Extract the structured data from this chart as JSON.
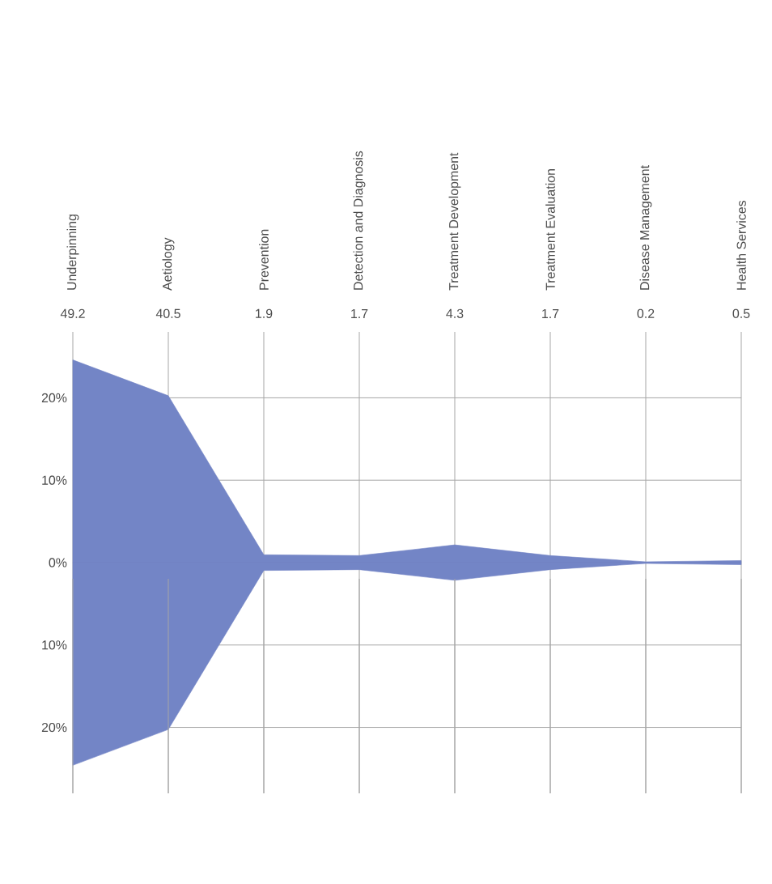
{
  "chart_data": {
    "type": "area",
    "categories": [
      "Underpinning",
      "Aetiology",
      "Prevention",
      "Detection and Diagnosis",
      "Treatment Development",
      "Treatment Evaluation",
      "Disease Management",
      "Health Services"
    ],
    "value_labels": [
      "49.2",
      "40.5",
      "1.9",
      "1.7",
      "4.3",
      "1.7",
      "0.2",
      "0.5"
    ],
    "series": [
      {
        "color": "#7385c6",
        "values": [
          24.6,
          20.25,
          0.95,
          0.85,
          2.15,
          0.85,
          0.1,
          0.25
        ]
      },
      {
        "color": "#7385c6",
        "values": [
          -24.6,
          -20.25,
          -0.95,
          -0.85,
          -2.15,
          -0.85,
          -0.1,
          -0.25
        ]
      }
    ],
    "ylim": [
      -28,
      28
    ],
    "yticks": [
      {
        "value": -20,
        "label": "20%"
      },
      {
        "value": -10,
        "label": "10%"
      },
      {
        "value": 0,
        "label": "0%"
      },
      {
        "value": 10,
        "label": "10%"
      },
      {
        "value": 20,
        "label": "20%"
      }
    ],
    "grid": true
  }
}
